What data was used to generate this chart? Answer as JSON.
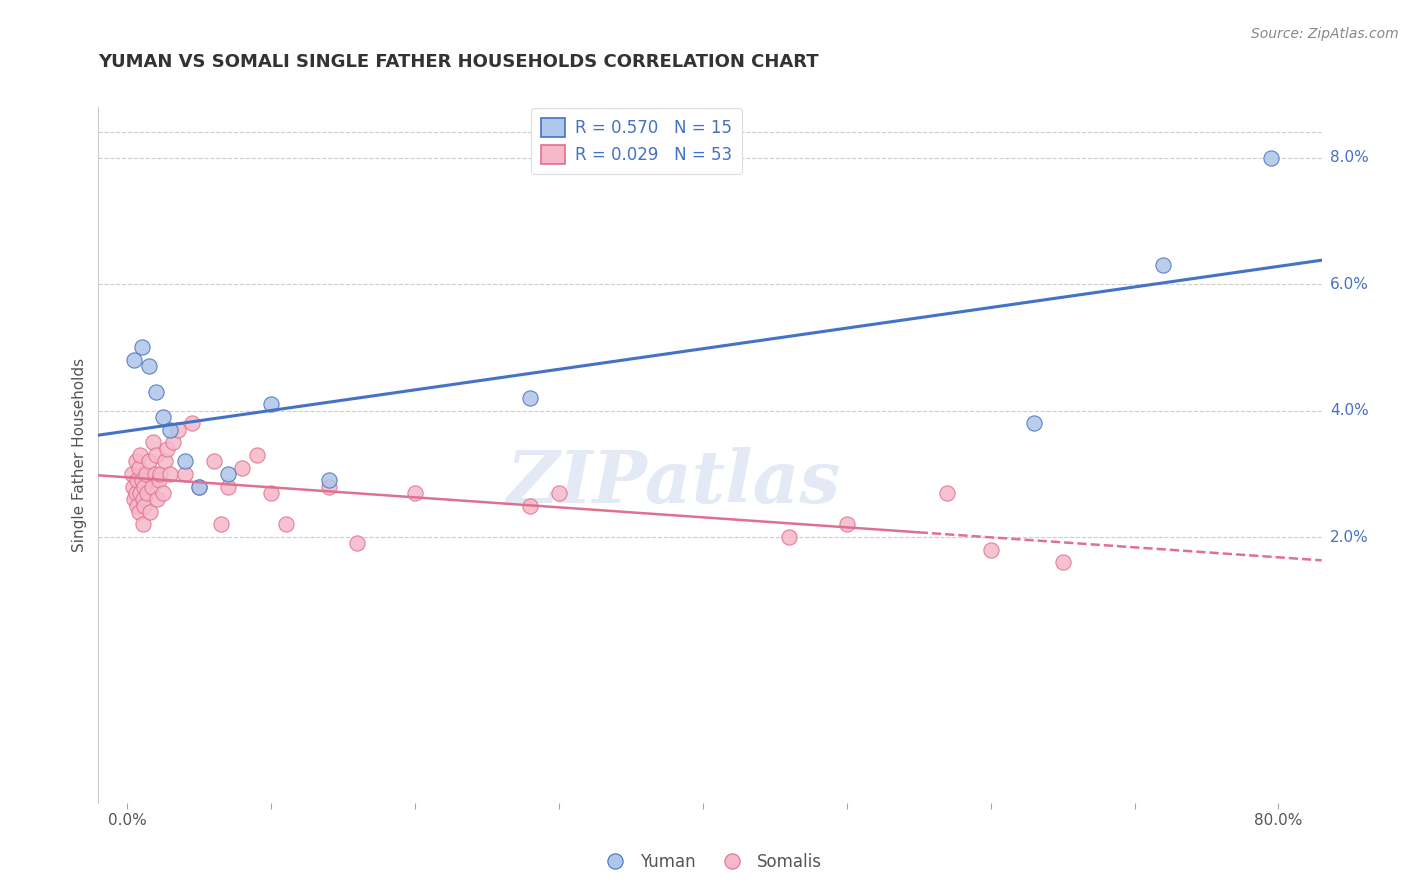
{
  "title": "YUMAN VS SOMALI SINGLE FATHER HOUSEHOLDS CORRELATION CHART",
  "source_text": "Source: ZipAtlas.com",
  "ylabel": "Single Father Households",
  "watermark": "ZIPatlas",
  "xlim_min": -0.02,
  "xlim_max": 0.83,
  "ylim_min": -0.022,
  "ylim_max": 0.088,
  "yticks_right": [
    0.02,
    0.04,
    0.06,
    0.08
  ],
  "ytick_labels_right": [
    "2.0%",
    "4.0%",
    "6.0%",
    "8.0%"
  ],
  "yuman_R": 0.57,
  "yuman_N": 15,
  "somali_R": 0.029,
  "somali_N": 53,
  "yuman_color": "#aec6e8",
  "somali_color": "#f5b8c8",
  "yuman_line_color": "#4472c4",
  "somali_line_color": "#e07090",
  "background_color": "#ffffff",
  "grid_color": "#cccccc",
  "yuman_x": [
    0.005,
    0.01,
    0.015,
    0.02,
    0.025,
    0.03,
    0.04,
    0.05,
    0.07,
    0.1,
    0.14,
    0.28,
    0.63,
    0.72,
    0.795
  ],
  "yuman_y": [
    0.048,
    0.05,
    0.047,
    0.043,
    0.039,
    0.037,
    0.032,
    0.028,
    0.03,
    0.041,
    0.029,
    0.042,
    0.038,
    0.063,
    0.08
  ],
  "somali_x": [
    0.003,
    0.004,
    0.005,
    0.006,
    0.006,
    0.007,
    0.007,
    0.008,
    0.008,
    0.009,
    0.009,
    0.01,
    0.011,
    0.011,
    0.012,
    0.012,
    0.013,
    0.014,
    0.015,
    0.016,
    0.017,
    0.018,
    0.019,
    0.02,
    0.021,
    0.022,
    0.023,
    0.025,
    0.026,
    0.028,
    0.03,
    0.032,
    0.035,
    0.04,
    0.045,
    0.05,
    0.06,
    0.065,
    0.07,
    0.08,
    0.09,
    0.1,
    0.11,
    0.14,
    0.16,
    0.2,
    0.28,
    0.3,
    0.46,
    0.5,
    0.57,
    0.6,
    0.65
  ],
  "somali_y": [
    0.03,
    0.028,
    0.026,
    0.032,
    0.027,
    0.029,
    0.025,
    0.031,
    0.024,
    0.033,
    0.027,
    0.029,
    0.026,
    0.022,
    0.028,
    0.025,
    0.03,
    0.027,
    0.032,
    0.024,
    0.028,
    0.035,
    0.03,
    0.033,
    0.026,
    0.029,
    0.03,
    0.027,
    0.032,
    0.034,
    0.03,
    0.035,
    0.037,
    0.03,
    0.038,
    0.028,
    0.032,
    0.022,
    0.028,
    0.031,
    0.033,
    0.027,
    0.022,
    0.028,
    0.019,
    0.027,
    0.025,
    0.027,
    0.02,
    0.022,
    0.027,
    0.018,
    0.016
  ],
  "title_fontsize": 13,
  "axis_label_fontsize": 11,
  "tick_fontsize": 11,
  "legend_fontsize": 12,
  "source_fontsize": 10
}
